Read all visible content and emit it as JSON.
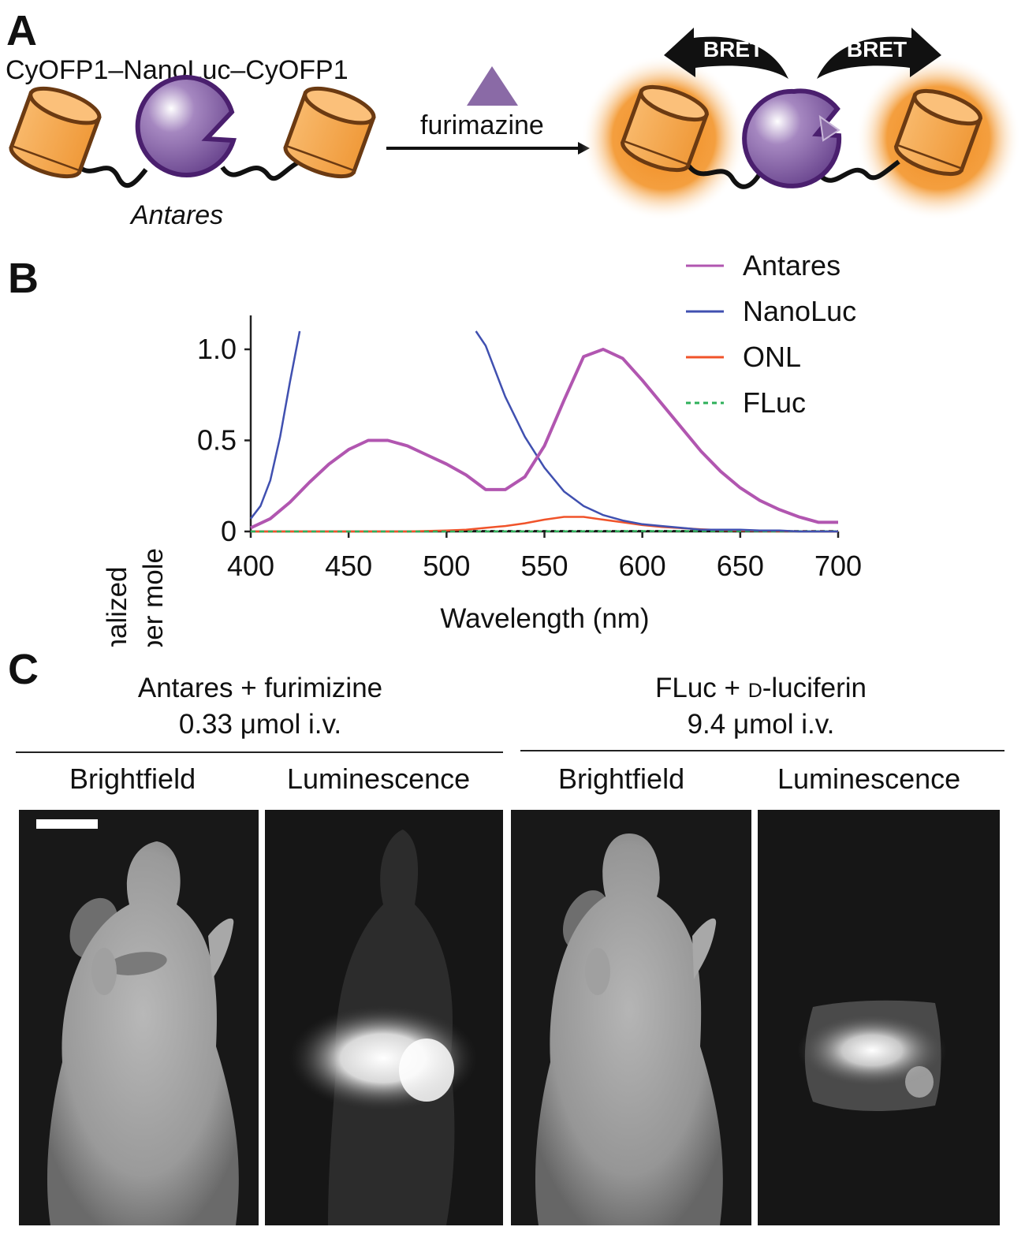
{
  "panel_a": {
    "letter": "A",
    "construct_label": "CyOFP1–NanoLuc–CyOFP1",
    "protein_name": "Antares",
    "substrate_label": "furimazine",
    "bret_label_left": "BRET",
    "bret_label_right": "BRET",
    "colors": {
      "cyofp": "#f5a14a",
      "nanoluc": "#8a63a6",
      "glow": "#f28a1e",
      "substrate": "#8a6aa6"
    }
  },
  "panel_b": {
    "letter": "B",
    "chart_data": {
      "type": "line",
      "xlabel": "Wavelength (nm)",
      "ylabel_line1": "Normalized",
      "ylabel_line2": "emission per mole",
      "xlim": [
        400,
        700
      ],
      "ylim": [
        0,
        1.15
      ],
      "xticks": [
        400,
        450,
        500,
        550,
        600,
        650,
        700
      ],
      "xtick_labels": [
        "400",
        "450",
        "500",
        "550",
        "600",
        "650",
        "700"
      ],
      "yticks": [
        0,
        0.5,
        1.0
      ],
      "ytick_labels": [
        "0",
        "0.5",
        "1.0"
      ],
      "grid": false,
      "legend_position": "top-right",
      "series": [
        {
          "name": "Antares",
          "color": "#b156b0",
          "dash": false,
          "x": [
            400,
            410,
            420,
            430,
            440,
            450,
            460,
            470,
            480,
            490,
            500,
            510,
            520,
            530,
            540,
            550,
            560,
            570,
            580,
            590,
            600,
            610,
            620,
            630,
            640,
            650,
            660,
            670,
            680,
            690,
            700
          ],
          "y": [
            0.02,
            0.07,
            0.16,
            0.27,
            0.37,
            0.45,
            0.5,
            0.5,
            0.47,
            0.42,
            0.37,
            0.31,
            0.23,
            0.23,
            0.3,
            0.47,
            0.72,
            0.96,
            1.0,
            0.95,
            0.83,
            0.7,
            0.57,
            0.44,
            0.33,
            0.24,
            0.17,
            0.12,
            0.08,
            0.05,
            0.05
          ]
        },
        {
          "name": "NanoLuc",
          "color": "#4050b0",
          "dash": false,
          "x": [
            400,
            405,
            410,
            415,
            420,
            425,
            515,
            520,
            530,
            540,
            550,
            560,
            570,
            580,
            590,
            600,
            610,
            620,
            630,
            640,
            650,
            660,
            670,
            680,
            690,
            700
          ],
          "y": [
            0.07,
            0.14,
            0.28,
            0.52,
            0.82,
            1.12,
            1.15,
            1.02,
            0.74,
            0.52,
            0.35,
            0.22,
            0.14,
            0.09,
            0.06,
            0.04,
            0.03,
            0.02,
            0.01,
            0.01,
            0.01,
            0.005,
            0.005,
            0.0,
            0.0,
            0.0
          ]
        },
        {
          "name": "ONL",
          "color": "#f0532a",
          "dash": false,
          "x": [
            400,
            450,
            480,
            500,
            510,
            520,
            530,
            540,
            550,
            560,
            570,
            580,
            590,
            600,
            610,
            620,
            630,
            640,
            650,
            660,
            680,
            700
          ],
          "y": [
            0.0,
            0.0,
            0.0,
            0.005,
            0.01,
            0.02,
            0.03,
            0.045,
            0.065,
            0.08,
            0.08,
            0.065,
            0.05,
            0.035,
            0.025,
            0.018,
            0.012,
            0.008,
            0.005,
            0.003,
            0.001,
            0.0
          ]
        },
        {
          "name": "FLuc",
          "color": "#2eb05a",
          "dash": true,
          "x": [
            400,
            500,
            550,
            600,
            650,
            700
          ],
          "y": [
            0.0,
            0.0,
            0.001,
            0.002,
            0.002,
            0.001
          ]
        }
      ]
    }
  },
  "panel_c": {
    "letter": "C",
    "group_left": {
      "line1": "Antares + furimizine",
      "line2": "0.33 μmol i.v."
    },
    "group_right": {
      "line1_pre": "FLuc + ",
      "line1_sc": "d",
      "line1_post": "-luciferin",
      "line2": "9.4 μmol i.v."
    },
    "columns": [
      "Brightfield",
      "Luminescence",
      "Brightfield",
      "Luminescence"
    ]
  }
}
